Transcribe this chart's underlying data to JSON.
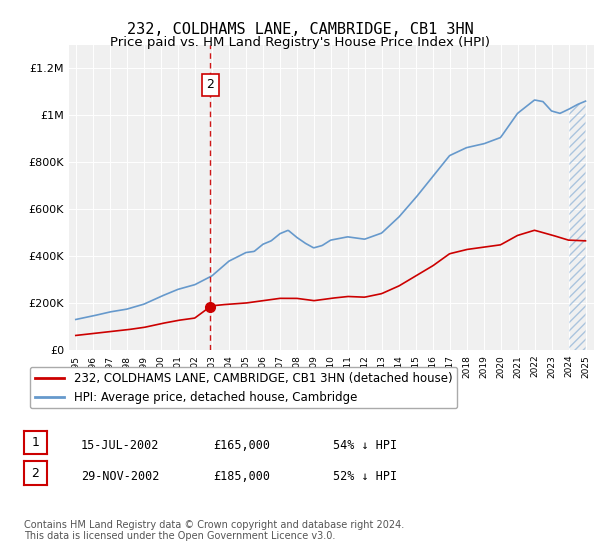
{
  "title": "232, COLDHAMS LANE, CAMBRIDGE, CB1 3HN",
  "subtitle": "Price paid vs. HM Land Registry's House Price Index (HPI)",
  "ylim": [
    0,
    1300000
  ],
  "yticks": [
    0,
    200000,
    400000,
    600000,
    800000,
    1000000,
    1200000
  ],
  "ytick_labels": [
    "£0",
    "£200K",
    "£400K",
    "£600K",
    "£800K",
    "£1M",
    "£1.2M"
  ],
  "sale1_date": 2002.54,
  "sale1_price": 165000,
  "sale1_label": "1",
  "sale1_date_str": "15-JUL-2002",
  "sale1_price_str": "£165,000",
  "sale1_hpi_str": "54% ↓ HPI",
  "sale2_date": 2002.92,
  "sale2_price": 185000,
  "sale2_label": "2",
  "sale2_date_str": "29-NOV-2002",
  "sale2_price_str": "£185,000",
  "sale2_hpi_str": "52% ↓ HPI",
  "legend_line1": "232, COLDHAMS LANE, CAMBRIDGE, CB1 3HN (detached house)",
  "legend_line2": "HPI: Average price, detached house, Cambridge",
  "footnote": "Contains HM Land Registry data © Crown copyright and database right 2024.\nThis data is licensed under the Open Government Licence v3.0.",
  "line_color_red": "#cc0000",
  "line_color_blue": "#6699cc",
  "bg_color": "#f0f0f0",
  "vline_color": "#cc0000",
  "title_fontsize": 11,
  "subtitle_fontsize": 9.5,
  "axis_fontsize": 8,
  "legend_fontsize": 8.5,
  "footnote_fontsize": 7,
  "blue_approx_x": [
    1995,
    1996,
    1997,
    1998,
    1999,
    2000,
    2001,
    2002,
    2003,
    2004,
    2005,
    2005.5,
    2006,
    2006.5,
    2007,
    2007.5,
    2008,
    2008.5,
    2009,
    2009.5,
    2010,
    2011,
    2012,
    2013,
    2014,
    2015,
    2016,
    2017,
    2018,
    2019,
    2020,
    2021,
    2022,
    2022.5,
    2023,
    2023.5,
    2024,
    2024.5,
    2025
  ],
  "blue_approx_y": [
    130000,
    145000,
    162000,
    174000,
    195000,
    228000,
    258000,
    278000,
    315000,
    378000,
    415000,
    420000,
    450000,
    465000,
    495000,
    510000,
    480000,
    455000,
    435000,
    445000,
    468000,
    482000,
    472000,
    498000,
    565000,
    648000,
    738000,
    828000,
    862000,
    878000,
    905000,
    1008000,
    1065000,
    1058000,
    1018000,
    1008000,
    1025000,
    1045000,
    1060000
  ],
  "red_approx_x": [
    1995,
    1996,
    1997,
    1998,
    1999,
    2000,
    2001,
    2002,
    2002.54,
    2002.92,
    2003,
    2003.5,
    2004,
    2005,
    2006,
    2007,
    2008,
    2009,
    2010,
    2011,
    2012,
    2013,
    2014,
    2015,
    2016,
    2017,
    2018,
    2019,
    2020,
    2021,
    2022,
    2023,
    2024,
    2025
  ],
  "red_approx_y": [
    62000,
    70000,
    78000,
    86000,
    96000,
    112000,
    126000,
    136000,
    165000,
    185000,
    188000,
    192000,
    195000,
    200000,
    210000,
    220000,
    220000,
    210000,
    220000,
    228000,
    225000,
    240000,
    272000,
    315000,
    358000,
    410000,
    428000,
    438000,
    448000,
    488000,
    510000,
    490000,
    468000,
    465000
  ],
  "x_ticks": [
    1995,
    1996,
    1997,
    1998,
    1999,
    2000,
    2001,
    2002,
    2003,
    2004,
    2005,
    2006,
    2007,
    2008,
    2009,
    2010,
    2011,
    2012,
    2013,
    2014,
    2015,
    2016,
    2017,
    2018,
    2019,
    2020,
    2021,
    2022,
    2023,
    2024,
    2025
  ]
}
